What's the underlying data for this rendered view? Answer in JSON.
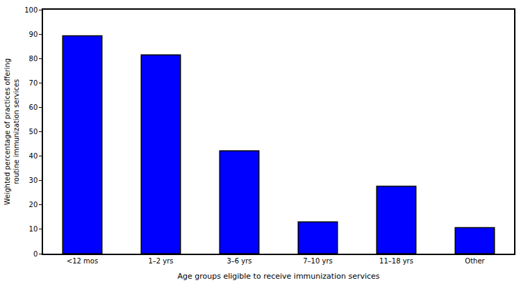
{
  "chart_data": {
    "type": "bar",
    "categories": [
      "<12 mos",
      "1–2 yrs",
      "3–6 yrs",
      "7–10 yrs",
      "11–18 yrs",
      "Other"
    ],
    "values": [
      89.3,
      81.5,
      42.2,
      13.0,
      27.6,
      10.7
    ],
    "color": "#0000ff",
    "xlabel": "Age groups eligible to receive immunization services",
    "ylabel": [
      "Weighted percentage of practices offering",
      "routine immunization services"
    ],
    "ylim": [
      0,
      100
    ],
    "yticks": [
      0,
      10,
      20,
      30,
      40,
      50,
      60,
      70,
      80,
      90,
      100
    ],
    "grid": false
  }
}
